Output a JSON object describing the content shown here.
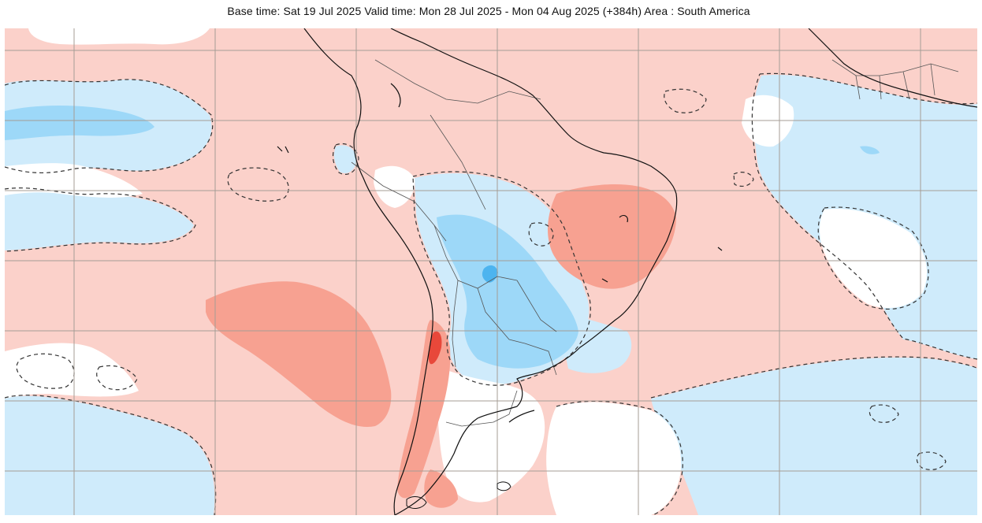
{
  "title": "Base time: Sat 19 Jul 2025 Valid time: Mon 28 Jul 2025 - Mon 04 Aug 2025 (+384h) Area : South America",
  "map": {
    "area": "South America",
    "projection": "plate carree",
    "colors": {
      "strong_warm": "#e8483a",
      "warm": "#f7a191",
      "mild_warm": "#fbd1ca",
      "mild_cool": "#cfebfb",
      "cool": "#9dd8f8",
      "strong_cool": "#4db4ef",
      "neutral": "#ffffff",
      "contour": "#333333",
      "coastline": "#111111",
      "borders": "#555555",
      "gridlines": "#a59d95"
    }
  }
}
